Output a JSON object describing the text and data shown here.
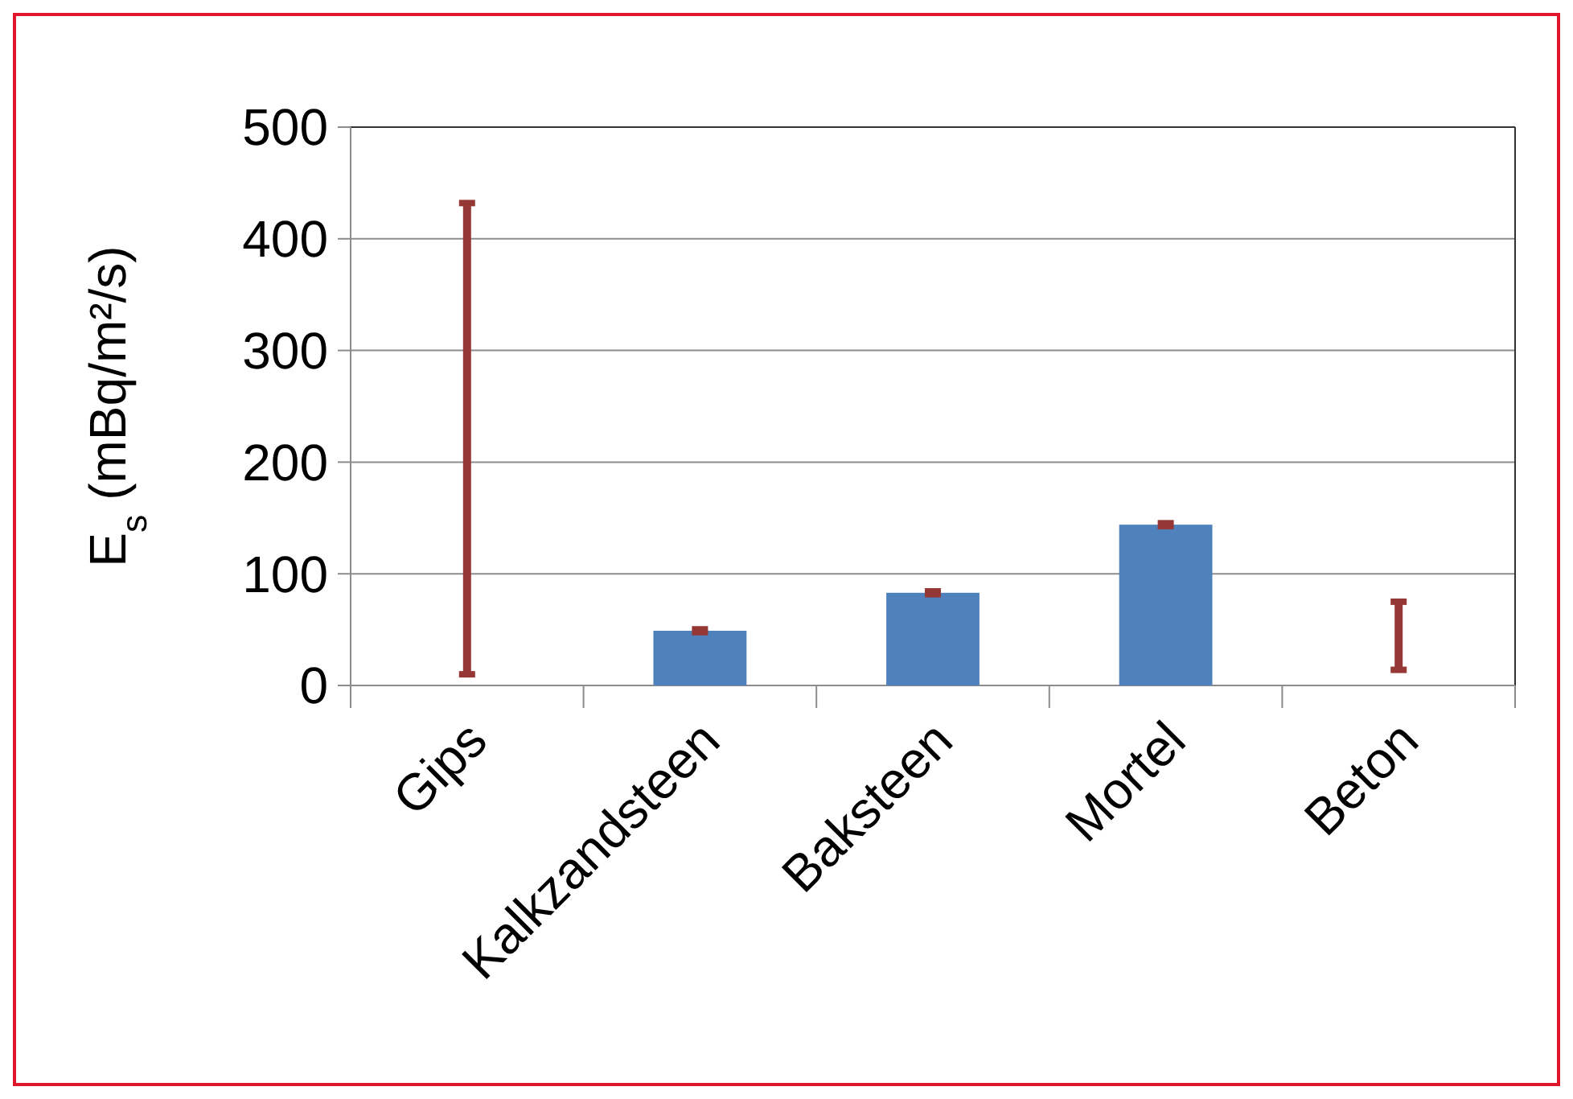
{
  "chart_data": {
    "type": "bar",
    "ylabel": "E$_{s}$ (mBq/m²/s)",
    "categories": [
      "Gips",
      "Kalkzandsteen",
      "Baksteen",
      "Mortel",
      "Beton"
    ],
    "series": [
      {
        "colors": [
          "#953735",
          "#4f81bd",
          "#4f81bd",
          "#4f81bd",
          "#953735"
        ],
        "values": [
          422,
          49,
          83,
          144,
          61
        ],
        "base": [
          10,
          null,
          null,
          null,
          14
        ],
        "errors": [
          null,
          2,
          2,
          2,
          null
        ]
      }
    ],
    "ylim": [
      0,
      500
    ],
    "yticks": [
      0,
      100,
      200,
      300,
      400,
      500
    ],
    "grid": "y"
  }
}
